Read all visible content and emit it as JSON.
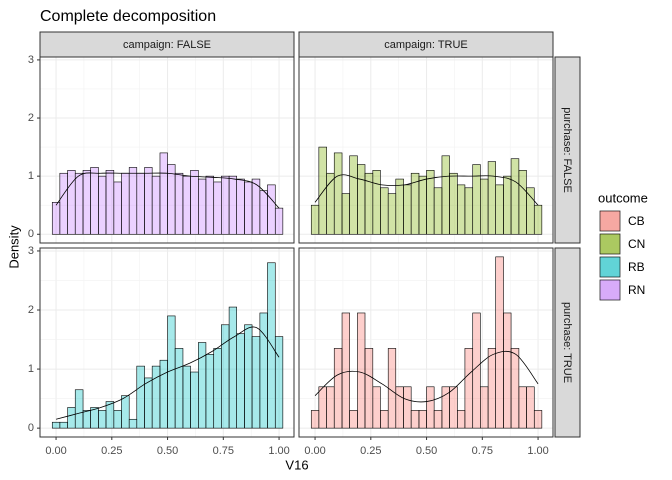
{
  "chart_data": {
    "type": "histogram",
    "title": "Complete decomposition",
    "x_label": "V16",
    "y_label": "Density",
    "legend_title": "outcome",
    "legend_position": "right",
    "col_strips": [
      "campaign: FALSE",
      "campaign: TRUE"
    ],
    "row_strips": [
      "purchase: FALSE",
      "purchase: TRUE"
    ],
    "bins": [
      -0.017,
      0.017,
      0.052,
      0.086,
      0.121,
      0.155,
      0.19,
      0.224,
      0.259,
      0.293,
      0.328,
      0.362,
      0.397,
      0.431,
      0.466,
      0.5,
      0.534,
      0.569,
      0.603,
      0.638,
      0.672,
      0.707,
      0.741,
      0.776,
      0.81,
      0.845,
      0.879,
      0.914,
      0.948,
      0.983,
      1.017
    ],
    "density_x": [
      0,
      0.1,
      0.2,
      0.3,
      0.4,
      0.5,
      0.6,
      0.7,
      0.8,
      0.9,
      1
    ],
    "xlim": [
      -0.072,
      1.067
    ],
    "ylim": [
      -0.15,
      3.05
    ],
    "xticks": [
      {
        "value": 0,
        "label": "0.00"
      },
      {
        "value": 0.25,
        "label": "0.25"
      },
      {
        "value": 0.5,
        "label": "0.50"
      },
      {
        "value": 0.75,
        "label": "0.75"
      },
      {
        "value": 1,
        "label": "1.00"
      }
    ],
    "yticks": [
      0,
      1,
      2,
      3
    ],
    "grid": true,
    "fill_alpha": 0.35,
    "series": [
      {
        "name": "CB",
        "color": "#f8766d",
        "facet": {
          "row": 1,
          "col": 1
        },
        "values": [
          0.3,
          0.7,
          0.7,
          1.35,
          1.95,
          0.3,
          1.95,
          1.35,
          0.7,
          0.3,
          1.35,
          0.7,
          0.7,
          0.3,
          0.3,
          0.7,
          0.3,
          0.7,
          0.7,
          0.3,
          1.35,
          1.95,
          0.7,
          1.35,
          2.9,
          1.95,
          1.35,
          0.7,
          0.7,
          0.3
        ],
        "density": [
          0.55,
          0.9,
          0.95,
          0.75,
          0.5,
          0.45,
          0.6,
          0.95,
          1.25,
          1.25,
          0.75
        ]
      },
      {
        "name": "CN",
        "color": "#7cae00",
        "facet": {
          "row": 0,
          "col": 1
        },
        "values": [
          0.5,
          1.5,
          1.05,
          1.4,
          0.7,
          1.35,
          1.2,
          1.05,
          1.1,
          0.8,
          0.7,
          0.95,
          0.85,
          1.05,
          1.0,
          1.1,
          0.8,
          1.35,
          1.05,
          0.85,
          0.8,
          1.2,
          0.95,
          1.25,
          0.85,
          1.0,
          1.3,
          1.1,
          0.8,
          0.5
        ],
        "density": [
          0.55,
          1.0,
          0.95,
          0.85,
          0.85,
          0.95,
          1.0,
          1.0,
          1.0,
          0.9,
          0.5
        ]
      },
      {
        "name": "RB",
        "color": "#00bfc4",
        "facet": {
          "row": 1,
          "col": 0
        },
        "values": [
          0.1,
          0.1,
          0.35,
          0.65,
          0.3,
          0.35,
          0.3,
          0.45,
          0.3,
          0.55,
          0.15,
          1.05,
          0.85,
          1.05,
          1.15,
          1.9,
          1.35,
          1.05,
          0.95,
          1.45,
          1.25,
          1.35,
          1.75,
          2.05,
          1.6,
          1.75,
          1.55,
          1.95,
          2.8,
          1.55
        ],
        "density": [
          0.15,
          0.25,
          0.35,
          0.5,
          0.75,
          0.95,
          1.1,
          1.3,
          1.55,
          1.7,
          1.2
        ]
      },
      {
        "name": "RN",
        "color": "#c77cff",
        "facet": {
          "row": 0,
          "col": 0
        },
        "values": [
          0.55,
          1.05,
          1.1,
          1.05,
          1.1,
          1.15,
          1.0,
          1.1,
          0.9,
          1.05,
          1.15,
          1.05,
          1.15,
          1.0,
          1.4,
          1.2,
          1.05,
          1.0,
          1.1,
          0.95,
          1.0,
          0.9,
          1.0,
          1.0,
          0.95,
          0.9,
          0.95,
          0.75,
          0.85,
          0.45
        ],
        "density": [
          0.5,
          1.0,
          1.05,
          1.05,
          1.05,
          1.05,
          1.0,
          0.98,
          0.95,
          0.85,
          0.45
        ]
      }
    ]
  }
}
